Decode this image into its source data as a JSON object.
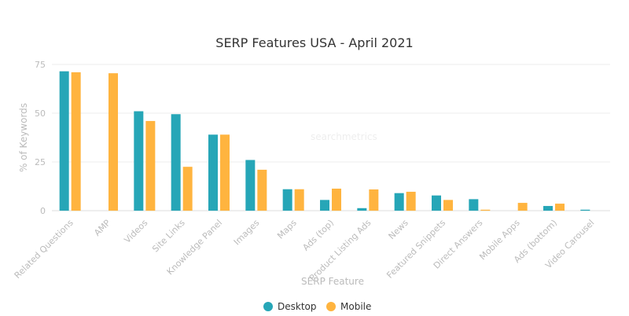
{
  "chart_data": {
    "type": "bar",
    "title": "SERP Features USA - April 2021",
    "xlabel": "SERP Feature",
    "ylabel": "% of Keywords",
    "ylim": [
      0,
      75
    ],
    "yticks": [
      0,
      25,
      50,
      75
    ],
    "grid": true,
    "legend_position": "bottom",
    "watermark": "searchmetrics",
    "categories": [
      "Related Questions",
      "AMP",
      "Videos",
      "Site Links",
      "Knowledge Panel",
      "Images",
      "Maps",
      "Ads (top)",
      "Product Listing Ads",
      "News",
      "Featured Snippets",
      "Direct Answers",
      "Mobile Apps",
      "Ads (bottom)",
      "Video Carousel"
    ],
    "series": [
      {
        "name": "Desktop",
        "color": "#26a6b7",
        "values": [
          71.5,
          0,
          51,
          49.5,
          39,
          26,
          11,
          5.5,
          1.3,
          9,
          7.8,
          5.9,
          0,
          2.4,
          0.5
        ]
      },
      {
        "name": "Mobile",
        "color": "#ffb43f",
        "values": [
          71,
          70.5,
          46,
          22.5,
          39,
          21,
          11,
          11.3,
          10.9,
          9.7,
          5.5,
          0.5,
          4,
          3.6,
          0
        ]
      }
    ]
  }
}
